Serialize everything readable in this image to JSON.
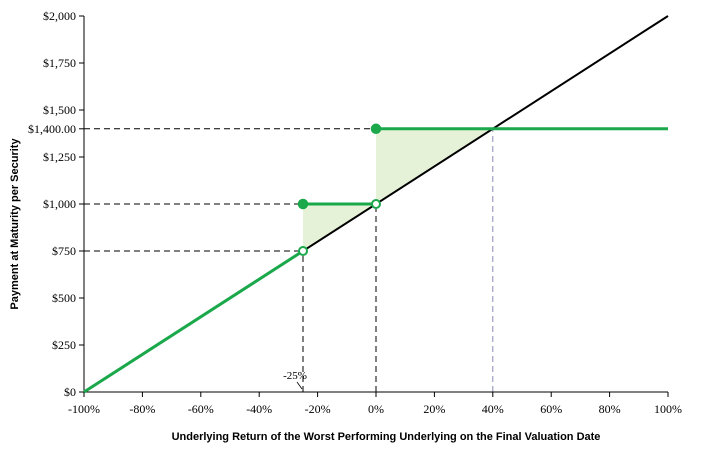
{
  "chart_data": {
    "type": "line",
    "xlabel": "Underlying Return of the Worst Performing Underlying on the Final Valuation Date",
    "ylabel": "Payment at Maturity per Security",
    "xlim": [
      -100,
      100
    ],
    "ylim": [
      0,
      2000
    ],
    "x_ticks": [
      -100,
      -80,
      -60,
      -40,
      -20,
      0,
      20,
      40,
      60,
      80,
      100
    ],
    "x_tick_labels": [
      "-100%",
      "-80%",
      "-60%",
      "-40%",
      "-20%",
      "0%",
      "20%",
      "40%",
      "60%",
      "80%",
      "100%"
    ],
    "y_ticks": [
      0,
      250,
      500,
      750,
      1000,
      1250,
      1500,
      1750,
      2000
    ],
    "y_tick_labels": [
      "$0",
      "$250",
      "$500",
      "$750",
      "$1,000",
      "$1,250",
      "$1,500",
      "$1,750",
      "$2,000"
    ],
    "extra_y_tick": {
      "value": 1400,
      "label": "$1,400.00"
    },
    "grid": false,
    "annotations": [
      {
        "text": "-25%",
        "x": -25
      }
    ],
    "series": [
      {
        "role": "underlying",
        "color": "#000000",
        "points": [
          [
            -100,
            0
          ],
          [
            100,
            2000
          ]
        ]
      },
      {
        "role": "payoff",
        "color": "#1aa84b",
        "segments": [
          [
            [
              -100,
              0
            ],
            [
              -25,
              750
            ]
          ],
          [
            [
              -25,
              1000
            ],
            [
              0,
              1000
            ]
          ],
          [
            [
              0,
              1400
            ],
            [
              100,
              1400
            ]
          ]
        ],
        "open_markers": [
          [
            -25,
            750
          ],
          [
            0,
            1000
          ]
        ],
        "closed_markers": [
          [
            -25,
            1000
          ],
          [
            0,
            1400
          ]
        ]
      }
    ],
    "shaded_regions": [
      {
        "color": "#e6f2d8",
        "points": [
          [
            -25,
            750
          ],
          [
            -25,
            1000
          ],
          [
            0,
            1000
          ]
        ]
      },
      {
        "color": "#e6f2d8",
        "points": [
          [
            0,
            1000
          ],
          [
            0,
            1400
          ],
          [
            40,
            1400
          ]
        ]
      }
    ],
    "reference_lines": [
      {
        "type": "h",
        "y": 1400,
        "x_to": 0,
        "color": "#000000"
      },
      {
        "type": "h",
        "y": 1000,
        "x_to": -25,
        "color": "#000000"
      },
      {
        "type": "h",
        "y": 750,
        "x_to": -25,
        "color": "#000000"
      },
      {
        "type": "v",
        "x": -25,
        "y_to": 750,
        "color": "#000000"
      },
      {
        "type": "v",
        "x": 0,
        "y_to": 1000,
        "color": "#000000"
      },
      {
        "type": "v",
        "x": 40,
        "y_to": 1400,
        "color": "#8a8ab8"
      },
      {
        "type": "h",
        "y": 1400,
        "x_from": 0,
        "x_to": 40,
        "color": "#8a8ab8"
      }
    ]
  }
}
